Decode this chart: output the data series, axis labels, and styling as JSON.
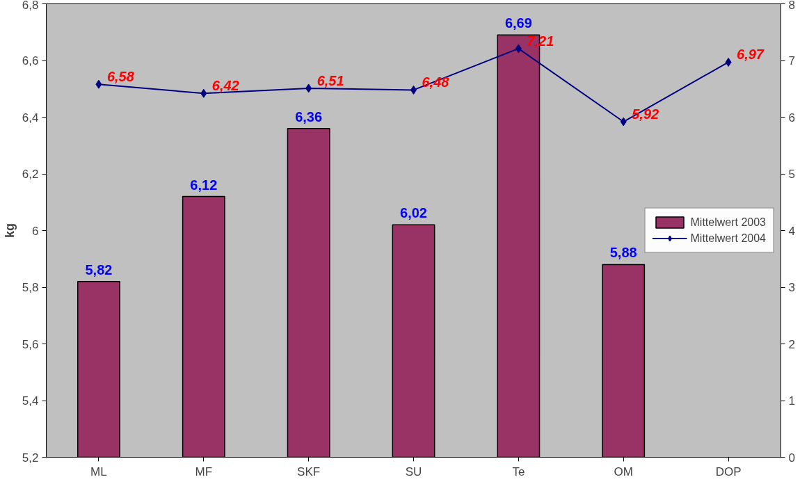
{
  "chart_data": {
    "type": "bar",
    "ylabel": "kg",
    "categories": [
      "ML",
      "MF",
      "SKF",
      "SU",
      "Te",
      "OM",
      "DOP"
    ],
    "series": [
      {
        "name": "Mittelwert 2003",
        "color": "#993366",
        "values": [
          5.82,
          6.12,
          6.36,
          6.02,
          6.69,
          5.88,
          null
        ],
        "value_labels": [
          "5,82",
          "6,12",
          "6,36",
          "6,02",
          "6,69",
          "5,88",
          null
        ]
      },
      {
        "name": "Mittelwert 2004",
        "type": "line",
        "axis": "y2",
        "color": "#000080",
        "marker": "diamond",
        "values": [
          6.58,
          6.42,
          6.51,
          6.48,
          7.21,
          5.92,
          6.97
        ],
        "value_labels": [
          "6,58",
          "6,42",
          "6,51",
          "6,48",
          "7,21",
          "5,92",
          "6,97"
        ]
      }
    ],
    "ylim": [
      5.2,
      6.8
    ],
    "yticks": [
      {
        "value": 5.2,
        "label": "5,2"
      },
      {
        "value": 5.4,
        "label": "5,4"
      },
      {
        "value": 5.6,
        "label": "5,6"
      },
      {
        "value": 5.8,
        "label": "5,8"
      },
      {
        "value": 6,
        "label": "6"
      },
      {
        "value": 6.2,
        "label": "6,2"
      },
      {
        "value": 6.4,
        "label": "6,4"
      },
      {
        "value": 6.6,
        "label": "6,6"
      },
      {
        "value": 6.8,
        "label": "6,8"
      }
    ],
    "y2lim": [
      0,
      8
    ],
    "y2ticks": [
      0,
      1,
      2,
      3,
      4,
      5,
      6,
      7,
      8
    ],
    "legend": "right",
    "grid": false
  }
}
